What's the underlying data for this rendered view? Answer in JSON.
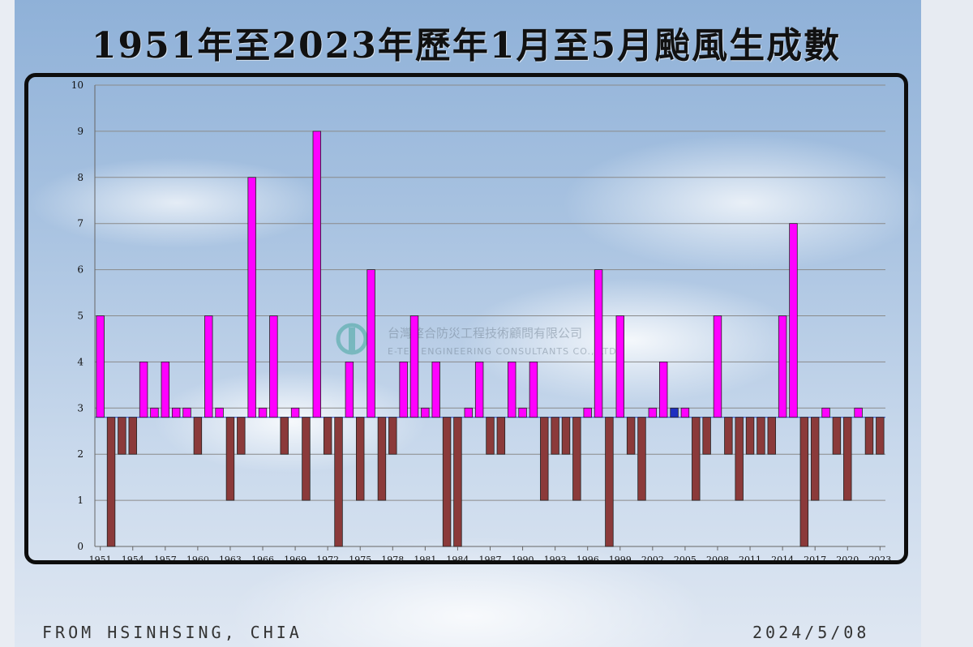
{
  "title": "1951年至2023年歷年1月至5月颱風生成數",
  "watermark": {
    "line1": "台灣整合防災工程技術顧問有限公司",
    "line2": "E-TEN ENGINEERING CONSULTANTS CO., LTD."
  },
  "footer": {
    "credit": "FROM HSINHSING, CHIA",
    "date": "2024/5/08"
  },
  "colors": {
    "above_baseline": "#ff00ff",
    "below_baseline": "#8b3a3a",
    "highlight": "#1f2fc0",
    "gridline": "#8a8a8a"
  },
  "chart_data": {
    "type": "bar",
    "title": "1951年至2023年歷年1月至5月颱風生成數",
    "xlabel": "",
    "ylabel": "",
    "ylim": [
      0,
      10
    ],
    "yticks": [
      "0",
      "1",
      "2",
      "3",
      "4",
      "5",
      "6",
      "7",
      "8",
      "9",
      "10"
    ],
    "baseline": 2.8,
    "grid": true,
    "x_tick_labels": [
      "1951",
      "1954",
      "1957",
      "1960",
      "1963",
      "1966",
      "1969",
      "1972",
      "1975",
      "1978",
      "1981",
      "1984",
      "1987",
      "1990",
      "1993",
      "1996",
      "1999",
      "2002",
      "2005",
      "2008",
      "2011",
      "2014",
      "2017",
      "2020",
      "2023"
    ],
    "categories": [
      1951,
      1952,
      1953,
      1954,
      1955,
      1956,
      1957,
      1958,
      1959,
      1960,
      1961,
      1962,
      1963,
      1964,
      1965,
      1966,
      1967,
      1968,
      1969,
      1970,
      1971,
      1972,
      1973,
      1974,
      1975,
      1976,
      1977,
      1978,
      1979,
      1980,
      1981,
      1982,
      1983,
      1984,
      1985,
      1986,
      1987,
      1988,
      1989,
      1990,
      1991,
      1992,
      1993,
      1994,
      1995,
      1996,
      1997,
      1998,
      1999,
      2000,
      2001,
      2002,
      2003,
      2004,
      2005,
      2006,
      2007,
      2008,
      2009,
      2010,
      2011,
      2012,
      2013,
      2014,
      2015,
      2016,
      2017,
      2018,
      2019,
      2020,
      2021,
      2022,
      2023
    ],
    "values": [
      5,
      0,
      2,
      2,
      4,
      3,
      4,
      3,
      3,
      2,
      5,
      3,
      1,
      2,
      8,
      3,
      5,
      2,
      3,
      1,
      9,
      2,
      0,
      4,
      1,
      6,
      1,
      2,
      4,
      5,
      3,
      4,
      0,
      0,
      3,
      4,
      2,
      2,
      4,
      3,
      4,
      1,
      2,
      2,
      1,
      3,
      6,
      0,
      5,
      2,
      1,
      3,
      4,
      3,
      3,
      1,
      2,
      5,
      2,
      1,
      2,
      2,
      2,
      5,
      7,
      0,
      1,
      3,
      2,
      1,
      3,
      2,
      2
    ],
    "highlighted_category": 2004
  }
}
